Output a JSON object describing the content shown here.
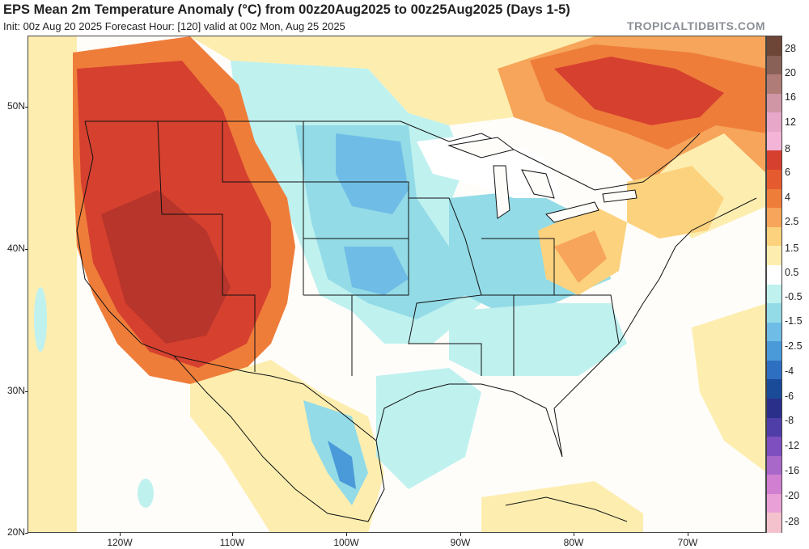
{
  "header": {
    "title": "EPS Mean 2m Temperature Anomaly (°C) from 00z20Aug2025 to 00z25Aug2025 (Days 1-5)",
    "subtitle": "Init: 00z Aug 20 2025   Forecast Hour: [120]   valid at 00z Mon, Aug 25 2025",
    "brand": "TROPICALTIDBITS.COM"
  },
  "axes": {
    "latitude_labels": [
      "50N",
      "40N",
      "30N",
      "20N"
    ],
    "longitude_labels": [
      "120W",
      "110W",
      "100W",
      "90W",
      "80W",
      "70W"
    ]
  },
  "colorbar": {
    "labels": [
      "28",
      "20",
      "16",
      "12",
      "8",
      "6",
      "4",
      "2.5",
      "1.5",
      "0.5",
      "-0.5",
      "-1.5",
      "-2.5",
      "-4",
      "-6",
      "-8",
      "-12",
      "-16",
      "-20",
      "-28"
    ],
    "colors": [
      "#6e4637",
      "#8a6156",
      "#b07c78",
      "#d096a6",
      "#e6a7c8",
      "#f3b4d7",
      "#d6402f",
      "#e55b2f",
      "#ef7d3a",
      "#f6a55a",
      "#fcd27e",
      "#fdeeb0",
      "#ffffff",
      "#bff1ef",
      "#93dbe7",
      "#6fbde6",
      "#4a9ad9",
      "#2e6fc1",
      "#1a4b99",
      "#2a2f8a",
      "#4f3ea8",
      "#7d4fbf",
      "#a868c9",
      "#d07fd1",
      "#e8a0d6",
      "#f3c2cc"
    ]
  },
  "map_regions": {
    "colors": {
      "ocean": "#fffdfa",
      "warm_light": "#fdeeb0",
      "warm_mid": "#fcd27e",
      "warm_orange": "#f6a55a",
      "warm_deep": "#ef7d3a",
      "hot": "#d6402f",
      "hot_dark": "#b7352a",
      "cool_light": "#bff1ef",
      "cool_mid": "#93dbe7",
      "cool_deep": "#6fbde6",
      "cold": "#4a9ad9",
      "neutral": "#ffffff"
    }
  }
}
